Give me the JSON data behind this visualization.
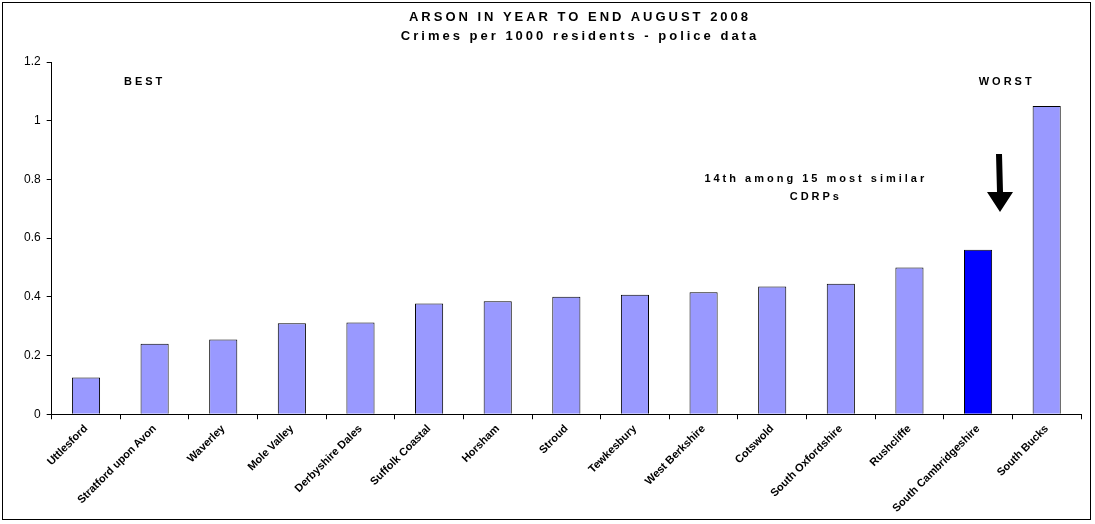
{
  "chart_data": {
    "type": "bar",
    "title": "ARSON IN YEAR TO END AUGUST 2008",
    "subtitle": "Crimes per 1000 residents - police data",
    "categories": [
      "Uttlesford",
      "Stratford upon Avon",
      "Waverley",
      "Mole Valley",
      "Derbyshire Dales",
      "Suffolk Coastal",
      "Horsham",
      "Stroud",
      "Tewkesbury",
      "West Berkshire",
      "Cotswold",
      "South Oxfordshire",
      "Rushcliffe",
      "South Cambridgeshire",
      "South Bucks"
    ],
    "values": [
      0.125,
      0.24,
      0.255,
      0.31,
      0.313,
      0.377,
      0.385,
      0.4,
      0.407,
      0.416,
      0.435,
      0.445,
      0.5,
      0.56,
      1.05
    ],
    "colors": [
      "#9999ff",
      "#9999ff",
      "#9999ff",
      "#9999ff",
      "#9999ff",
      "#9999ff",
      "#9999ff",
      "#9999ff",
      "#9999ff",
      "#9999ff",
      "#9999ff",
      "#9999ff",
      "#9999ff",
      "#0000ff",
      "#9999ff"
    ],
    "ylim": [
      0,
      1.2
    ],
    "yticks": [
      0,
      0.2,
      0.4,
      0.6,
      0.8,
      1,
      1.2
    ],
    "grid": false,
    "legend": false,
    "annotations": [
      "BEST",
      "WORST",
      "14th among 15 most similar CDRPs"
    ]
  }
}
